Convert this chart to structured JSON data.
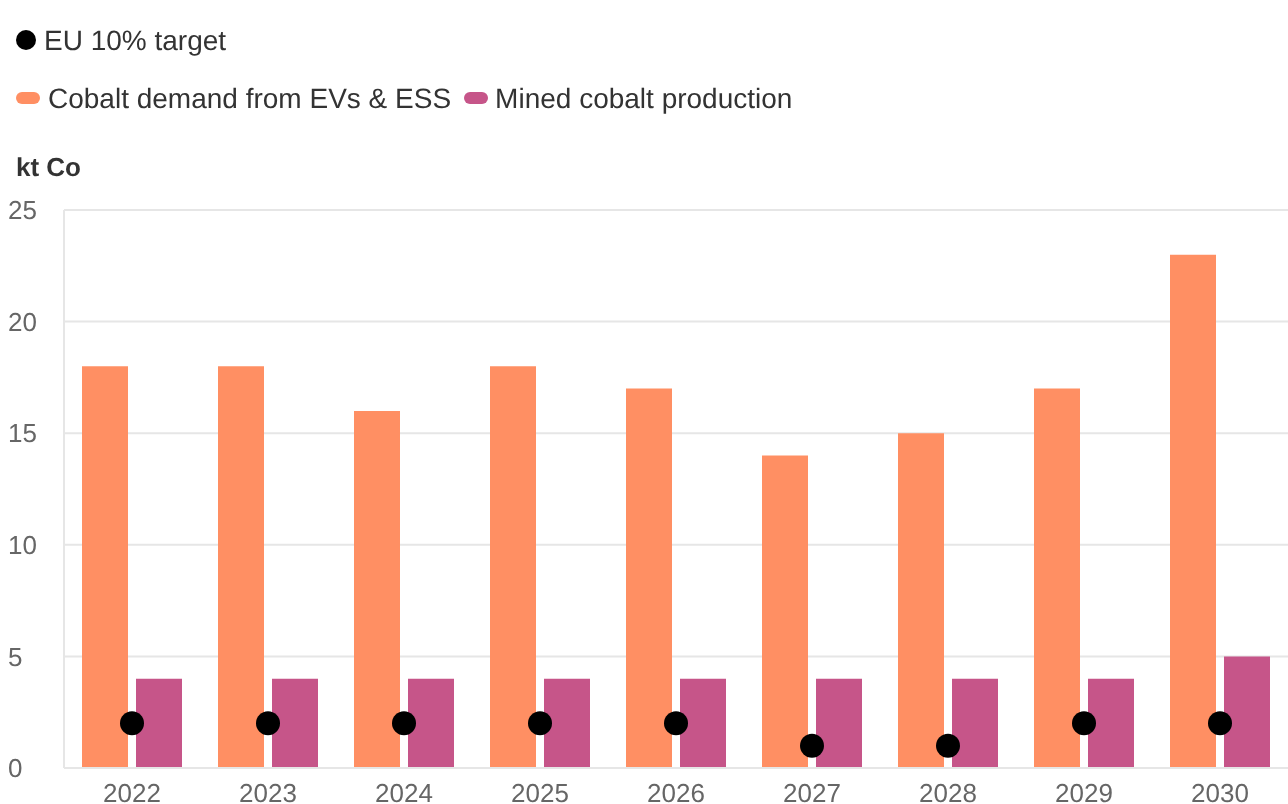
{
  "chart_data": {
    "type": "bar",
    "ylabel": "kt Co",
    "categories": [
      "2022",
      "2023",
      "2024",
      "2025",
      "2026",
      "2027",
      "2028",
      "2029",
      "2030"
    ],
    "series": [
      {
        "name": "EU 10% target",
        "type": "scatter",
        "color": "#000000",
        "values": [
          2,
          2,
          2,
          2,
          2,
          1,
          1,
          2,
          2
        ]
      },
      {
        "name": "Cobalt demand from EVs & ESS",
        "color": "#ff8f63",
        "values": [
          18,
          18,
          16,
          18,
          17,
          14,
          15,
          17,
          23
        ]
      },
      {
        "name": "Mined cobalt production",
        "color": "#c65589",
        "values": [
          4,
          4,
          4,
          4,
          4,
          4,
          4,
          4,
          5
        ]
      }
    ],
    "ylim": [
      0,
      25
    ],
    "yticks": [
      0,
      5,
      10,
      15,
      20,
      25
    ],
    "grid": "y",
    "legend": "top left",
    "marker": "circle"
  }
}
